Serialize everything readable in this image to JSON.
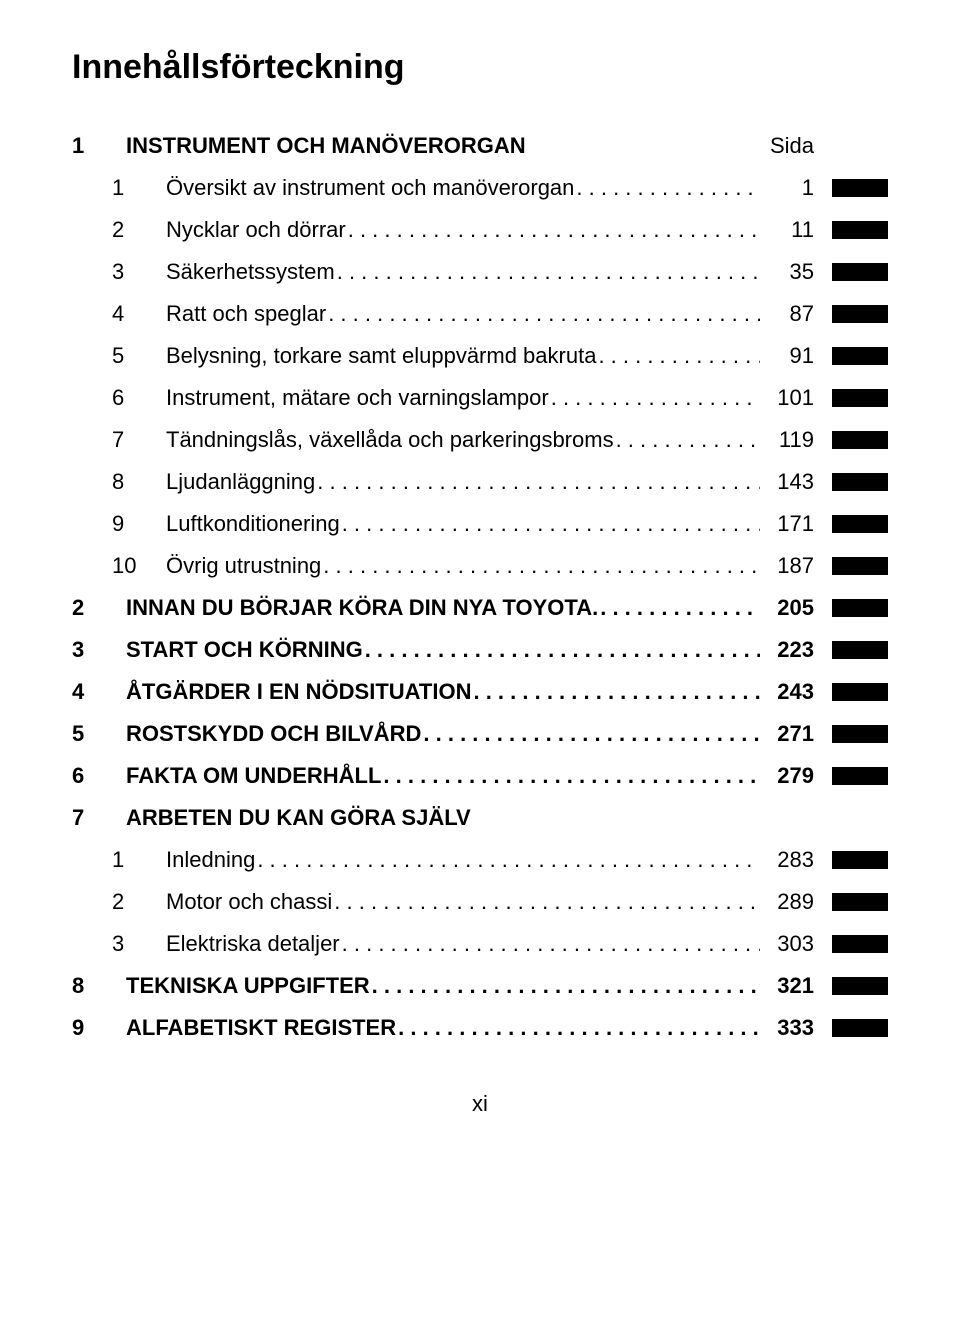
{
  "title": "Innehållsförteckning",
  "page_label": "Sida",
  "footer": "xi",
  "entries": [
    {
      "num": "1",
      "label": "INSTRUMENT OCH MANÖVERORGAN",
      "page": "",
      "bold": true,
      "indent": false,
      "tab": false,
      "leader": false,
      "headerRight": "Sida"
    },
    {
      "num": "1",
      "label": "Översikt av instrument och manöverorgan",
      "page": "1",
      "bold": false,
      "indent": true,
      "tab": true,
      "leader": true
    },
    {
      "num": "2",
      "label": "Nycklar och dörrar",
      "page": "11",
      "bold": false,
      "indent": true,
      "tab": true,
      "leader": true
    },
    {
      "num": "3",
      "label": "Säkerhetssystem",
      "page": "35",
      "bold": false,
      "indent": true,
      "tab": true,
      "leader": true
    },
    {
      "num": "4",
      "label": "Ratt och speglar",
      "page": "87",
      "bold": false,
      "indent": true,
      "tab": true,
      "leader": true
    },
    {
      "num": "5",
      "label": "Belysning, torkare samt eluppvärmd bakruta",
      "page": "91",
      "bold": false,
      "indent": true,
      "tab": true,
      "leader": true
    },
    {
      "num": "6",
      "label": "Instrument, mätare och varningslampor",
      "page": "101",
      "bold": false,
      "indent": true,
      "tab": true,
      "leader": true
    },
    {
      "num": "7",
      "label": "Tändningslås, växellåda och parkeringsbroms",
      "page": "119",
      "bold": false,
      "indent": true,
      "tab": true,
      "leader": true
    },
    {
      "num": "8",
      "label": "Ljudanläggning",
      "page": "143",
      "bold": false,
      "indent": true,
      "tab": true,
      "leader": true
    },
    {
      "num": "9",
      "label": "Luftkonditionering",
      "page": "171",
      "bold": false,
      "indent": true,
      "tab": true,
      "leader": true
    },
    {
      "num": "10",
      "label": "Övrig utrustning",
      "page": "187",
      "bold": false,
      "indent": true,
      "tab": true,
      "leader": true
    },
    {
      "num": "2",
      "label": "INNAN DU BÖRJAR KÖRA DIN NYA TOYOTA.",
      "page": "205",
      "bold": true,
      "indent": false,
      "tab": true,
      "leader": true
    },
    {
      "num": "3",
      "label": "START OCH KÖRNING",
      "page": "223",
      "bold": true,
      "indent": false,
      "tab": true,
      "leader": true
    },
    {
      "num": "4",
      "label": "ÅTGÄRDER I EN NÖDSITUATION",
      "page": "243",
      "bold": true,
      "indent": false,
      "tab": true,
      "leader": true
    },
    {
      "num": "5",
      "label": "ROSTSKYDD OCH BILVÅRD",
      "page": "271",
      "bold": true,
      "indent": false,
      "tab": true,
      "leader": true
    },
    {
      "num": "6",
      "label": "FAKTA OM UNDERHÅLL",
      "page": "279",
      "bold": true,
      "indent": false,
      "tab": true,
      "leader": true
    },
    {
      "num": "7",
      "label": "ARBETEN DU KAN GÖRA SJÄLV",
      "page": "",
      "bold": true,
      "indent": false,
      "tab": false,
      "leader": false
    },
    {
      "num": "1",
      "label": "Inledning",
      "page": "283",
      "bold": false,
      "indent": true,
      "tab": true,
      "leader": true
    },
    {
      "num": "2",
      "label": "Motor och chassi",
      "page": "289",
      "bold": false,
      "indent": true,
      "tab": true,
      "leader": true
    },
    {
      "num": "3",
      "label": "Elektriska detaljer",
      "page": "303",
      "bold": false,
      "indent": true,
      "tab": true,
      "leader": true
    },
    {
      "num": "8",
      "label": "TEKNISKA UPPGIFTER",
      "page": "321",
      "bold": true,
      "indent": false,
      "tab": true,
      "leader": true
    },
    {
      "num": "9",
      "label": "ALFABETISKT REGISTER",
      "page": "333",
      "bold": true,
      "indent": false,
      "tab": true,
      "leader": true
    }
  ]
}
